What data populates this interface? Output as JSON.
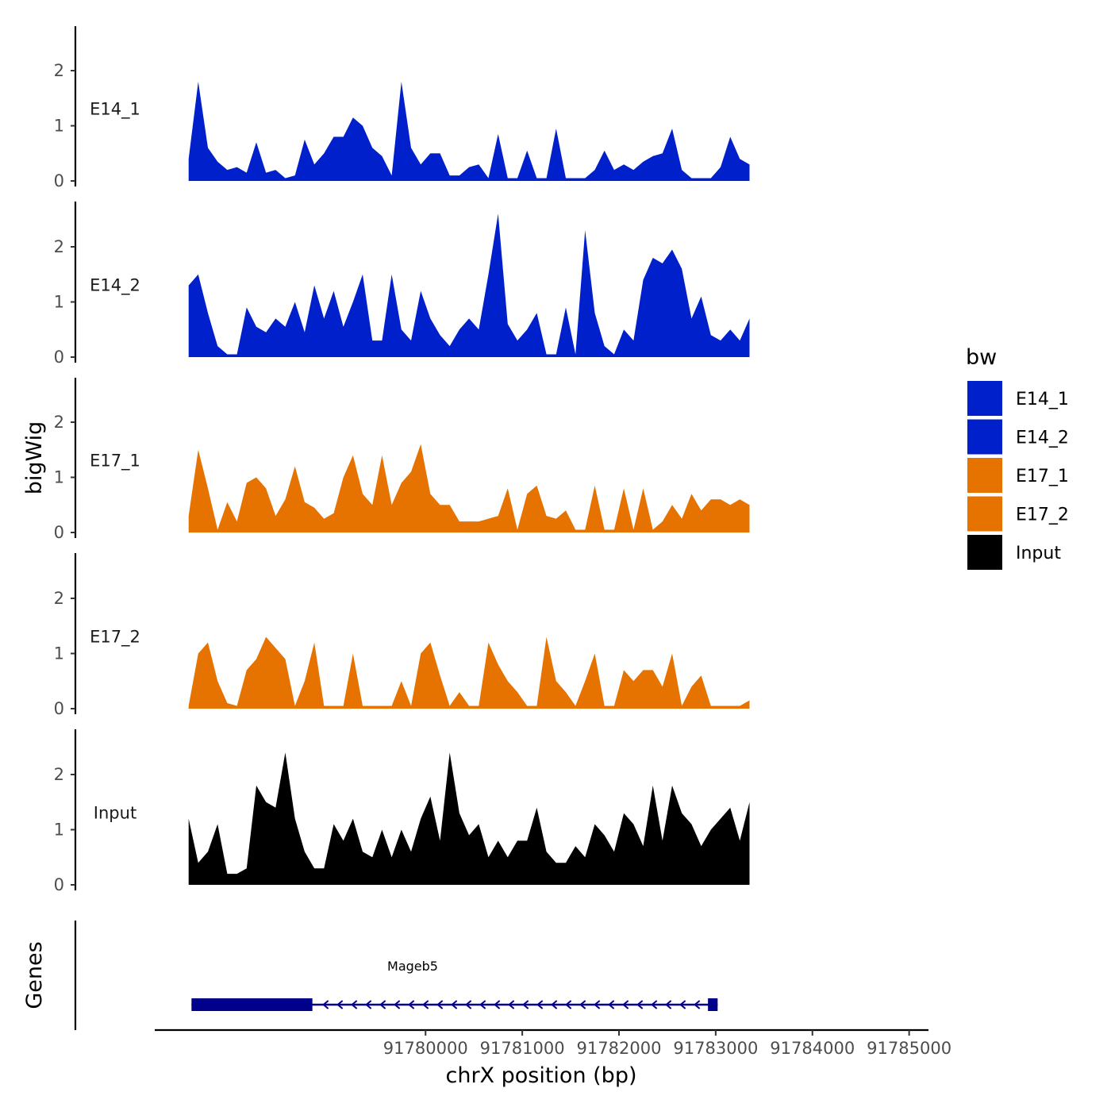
{
  "chart_data": {
    "type": "area",
    "title": "",
    "chromosome": "chrX",
    "xlabel": "chrX position (bp)",
    "ylabel": "bigWig",
    "xlim": [
      91777200,
      91785200
    ],
    "ylim": [
      0,
      2.8
    ],
    "x_ticks": [
      91780000,
      91781000,
      91782000,
      91783000,
      91784000,
      91785000
    ],
    "x_tick_labels": [
      "91780000",
      "91781000",
      "91782000",
      "91783000",
      "91784000",
      "91785000"
    ],
    "y_ticks": [
      0,
      1,
      2
    ],
    "y_tick_labels": [
      "0",
      "1",
      "2"
    ],
    "x_start": 91777550,
    "x_step": 100,
    "colors": {
      "E14_1": "#0020CC",
      "E14_2": "#0020CC",
      "E17_1": "#E67300",
      "E17_2": "#E67300",
      "Input": "#000000",
      "gene": "#00008B"
    },
    "legend": {
      "title": "bw",
      "position": "right",
      "entries": [
        {
          "name": "E14_1",
          "color": "#0020CC"
        },
        {
          "name": "E14_2",
          "color": "#0020CC"
        },
        {
          "name": "E17_1",
          "color": "#E67300"
        },
        {
          "name": "E17_2",
          "color": "#E67300"
        },
        {
          "name": "Input",
          "color": "#000000"
        }
      ]
    },
    "series": [
      {
        "name": "E14_1",
        "values": [
          0.4,
          1.8,
          0.6,
          0.35,
          0.2,
          0.25,
          0.15,
          0.7,
          0.15,
          0.2,
          0.05,
          0.1,
          0.75,
          0.3,
          0.5,
          0.8,
          0.8,
          1.15,
          1.0,
          0.6,
          0.45,
          0.1,
          1.8,
          0.6,
          0.3,
          0.5,
          0.5,
          0.1,
          0.1,
          0.25,
          0.3,
          0.05,
          0.85,
          0.05,
          0.05,
          0.55,
          0.05,
          0.05,
          0.95,
          0.05,
          0.05,
          0.05,
          0.2,
          0.55,
          0.2,
          0.3,
          0.2,
          0.35,
          0.45,
          0.5,
          0.95,
          0.2,
          0.05,
          0.05,
          0.05,
          0.25,
          0.8,
          0.4,
          0.3
        ]
      },
      {
        "name": "E14_2",
        "values": [
          1.3,
          1.5,
          0.8,
          0.2,
          0.05,
          0.05,
          0.9,
          0.55,
          0.45,
          0.7,
          0.55,
          1.0,
          0.45,
          1.3,
          0.7,
          1.2,
          0.55,
          1.0,
          1.5,
          0.3,
          0.3,
          1.5,
          0.5,
          0.3,
          1.2,
          0.7,
          0.4,
          0.2,
          0.5,
          0.7,
          0.5,
          1.5,
          2.6,
          0.6,
          0.3,
          0.5,
          0.8,
          0.05,
          0.05,
          0.9,
          0.05,
          2.3,
          0.8,
          0.2,
          0.05,
          0.5,
          0.3,
          1.4,
          1.8,
          1.7,
          1.95,
          1.6,
          0.7,
          1.1,
          0.4,
          0.3,
          0.5,
          0.3,
          0.7
        ]
      },
      {
        "name": "E17_1",
        "values": [
          0.3,
          1.5,
          0.8,
          0.05,
          0.55,
          0.2,
          0.9,
          1.0,
          0.8,
          0.3,
          0.6,
          1.2,
          0.55,
          0.45,
          0.25,
          0.35,
          1.0,
          1.4,
          0.7,
          0.5,
          1.4,
          0.5,
          0.9,
          1.1,
          1.6,
          0.7,
          0.5,
          0.5,
          0.2,
          0.2,
          0.2,
          0.25,
          0.3,
          0.8,
          0.05,
          0.7,
          0.85,
          0.3,
          0.25,
          0.4,
          0.05,
          0.05,
          0.85,
          0.05,
          0.05,
          0.8,
          0.05,
          0.8,
          0.05,
          0.2,
          0.5,
          0.25,
          0.7,
          0.4,
          0.6,
          0.6,
          0.5,
          0.6,
          0.5
        ]
      },
      {
        "name": "E17_2",
        "values": [
          0.05,
          1.0,
          1.2,
          0.5,
          0.1,
          0.05,
          0.7,
          0.9,
          1.3,
          1.1,
          0.9,
          0.05,
          0.5,
          1.2,
          0.05,
          0.05,
          0.05,
          1.0,
          0.05,
          0.05,
          0.05,
          0.05,
          0.5,
          0.05,
          1.0,
          1.2,
          0.6,
          0.05,
          0.3,
          0.05,
          0.05,
          1.2,
          0.8,
          0.5,
          0.3,
          0.05,
          0.05,
          1.3,
          0.5,
          0.3,
          0.05,
          0.5,
          1.0,
          0.05,
          0.05,
          0.7,
          0.5,
          0.7,
          0.7,
          0.4,
          1.0,
          0.05,
          0.4,
          0.6,
          0.05,
          0.05,
          0.05,
          0.05,
          0.15
        ]
      },
      {
        "name": "Input",
        "values": [
          1.2,
          0.4,
          0.6,
          1.1,
          0.2,
          0.2,
          0.3,
          1.8,
          1.5,
          1.4,
          2.4,
          1.2,
          0.6,
          0.3,
          0.3,
          1.1,
          0.8,
          1.2,
          0.6,
          0.5,
          1.0,
          0.5,
          1.0,
          0.6,
          1.2,
          1.6,
          0.8,
          2.4,
          1.3,
          0.9,
          1.1,
          0.5,
          0.8,
          0.5,
          0.8,
          0.8,
          1.4,
          0.6,
          0.4,
          0.4,
          0.7,
          0.5,
          1.1,
          0.9,
          0.6,
          1.3,
          1.1,
          0.7,
          1.8,
          0.8,
          1.8,
          1.3,
          1.1,
          0.7,
          1.0,
          1.2,
          1.4,
          0.8,
          1.5
        ]
      }
    ],
    "genes_track": {
      "label": "Genes",
      "genes": [
        {
          "name": "Mageb5",
          "start": 91777580,
          "end": 91783020,
          "strand": "-",
          "exon_start_left": 91777580,
          "exon_end_left": 91778830,
          "exon_start_right": 91782920,
          "exon_end_right": 91783020
        }
      ]
    }
  }
}
